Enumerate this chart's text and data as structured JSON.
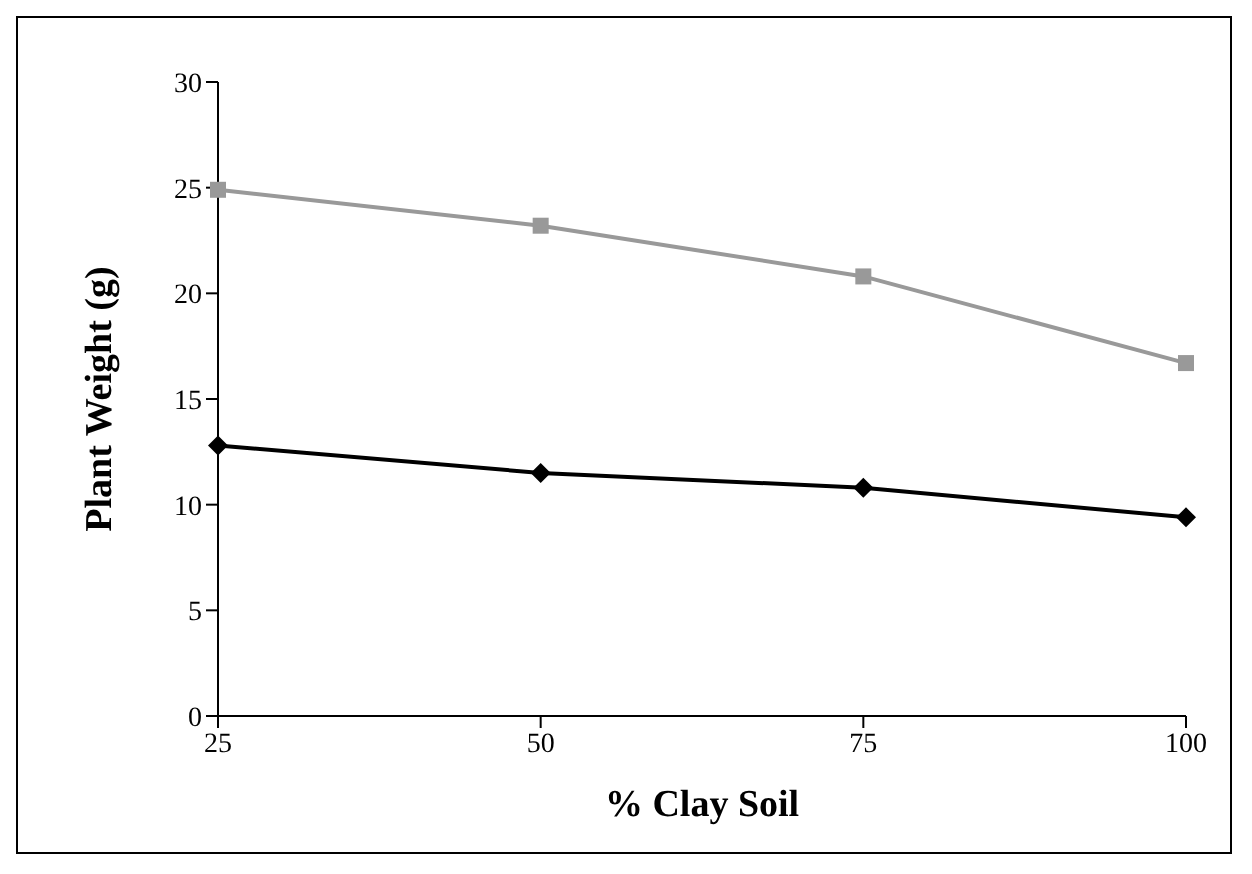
{
  "chart_data": {
    "type": "line",
    "xlabel": "% Clay Soil",
    "ylabel": "Plant Weight (g)",
    "categories": [
      "25",
      "50",
      "75",
      "100"
    ],
    "ylim": [
      0,
      30
    ],
    "yticks": [
      0,
      5,
      10,
      15,
      20,
      25,
      30
    ],
    "grid": false,
    "legend": false,
    "series": [
      {
        "color": "#000000",
        "marker": "diamond",
        "values": [
          12.8,
          11.5,
          10.8,
          9.4
        ]
      },
      {
        "color": "#999999",
        "marker": "square",
        "values": [
          24.9,
          23.2,
          20.8,
          16.7
        ]
      }
    ]
  }
}
